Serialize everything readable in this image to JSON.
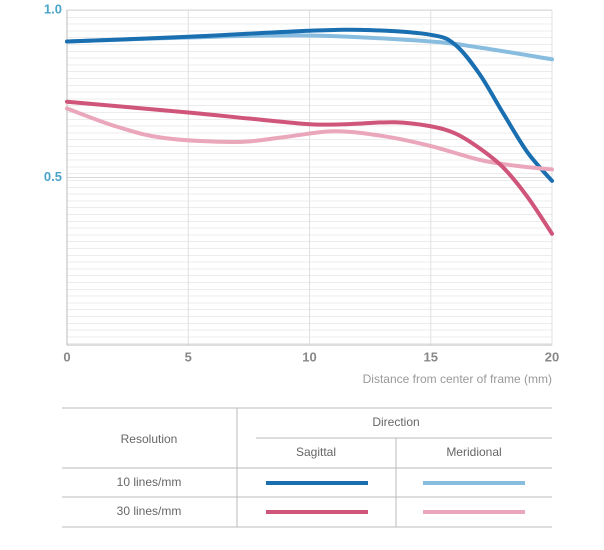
{
  "chart_data": {
    "type": "line",
    "xlabel": "Distance from center of frame (mm)",
    "xlim": [
      0,
      20
    ],
    "xticks": [
      0,
      5,
      10,
      15,
      20
    ],
    "ylim": [
      0,
      1
    ],
    "yticks": [
      0.5,
      {
        "value": 1,
        "label": "1.0"
      }
    ],
    "grid": true,
    "series": [
      {
        "color": "#1a6fb0",
        "x": [
          0,
          5,
          10,
          12.5,
          15,
          16,
          17,
          18,
          19,
          20
        ],
        "values": [
          0.906,
          0.92,
          0.938,
          0.94,
          0.926,
          0.897,
          0.81,
          0.69,
          0.574,
          0.49
        ]
      },
      {
        "color": "#88bde0",
        "x": [
          0,
          5,
          10,
          15,
          17,
          20
        ],
        "values": [
          0.906,
          0.918,
          0.924,
          0.906,
          0.888,
          0.853
        ]
      },
      {
        "color": "#d0557a",
        "x": [
          0,
          5,
          7.5,
          10,
          11.5,
          13.5,
          15,
          16,
          17,
          18,
          19,
          20
        ],
        "values": [
          0.726,
          0.694,
          0.676,
          0.659,
          0.659,
          0.665,
          0.653,
          0.632,
          0.588,
          0.529,
          0.441,
          0.332
        ]
      },
      {
        "color": "#eaa6ba",
        "x": [
          0,
          2,
          4,
          7,
          9,
          11,
          13,
          15,
          17,
          18.5,
          20
        ],
        "values": [
          0.706,
          0.653,
          0.618,
          0.606,
          0.621,
          0.638,
          0.624,
          0.594,
          0.553,
          0.535,
          0.524
        ]
      }
    ],
    "legend": {
      "resolution": "Resolution",
      "direction": "Direction",
      "columns": [
        "Sagittal",
        "Meridional"
      ],
      "rows": [
        "10 lines/mm",
        "30 lines/mm"
      ]
    }
  }
}
